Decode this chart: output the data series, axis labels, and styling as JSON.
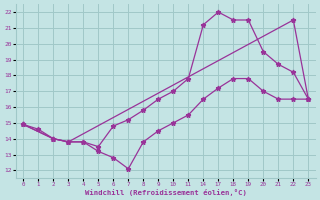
{
  "xlabel": "Windchill (Refroidissement éolien,°C)",
  "bg_color": "#c4e4e4",
  "grid_color": "#a0c8c8",
  "line_color": "#993399",
  "xtick_labels": [
    "0",
    "1",
    "2",
    "3",
    "4",
    "5",
    "6",
    "7",
    "8",
    "9",
    "1011",
    "",
    "14",
    "",
    "1718",
    "19",
    "20",
    "2122",
    "23"
  ],
  "xtick_labels2": [
    "0",
    "1",
    "2",
    "3",
    "4",
    "5",
    "6",
    "7",
    "8",
    "9",
    "10",
    "11",
    "14",
    "17",
    "18",
    "19",
    "20",
    "21",
    "22",
    "23"
  ],
  "n_xcat": 20,
  "line1_xi": [
    0,
    1,
    2,
    3,
    4,
    5,
    6,
    7,
    8,
    9,
    10,
    11,
    12,
    13,
    14,
    15,
    16,
    17,
    18,
    19
  ],
  "line1_y": [
    14.9,
    14.6,
    14.0,
    13.8,
    13.8,
    13.2,
    12.8,
    12.1,
    13.8,
    14.5,
    15.0,
    15.5,
    16.5,
    17.2,
    17.8,
    17.8,
    17.0,
    16.5,
    16.5,
    16.5
  ],
  "line2_xi": [
    0,
    2,
    3,
    4,
    5,
    6,
    7,
    8,
    9,
    10,
    11,
    12,
    13,
    14,
    15,
    16,
    17,
    18,
    19
  ],
  "line2_y": [
    14.9,
    14.0,
    13.8,
    13.8,
    13.5,
    14.8,
    15.2,
    15.8,
    16.5,
    17.0,
    17.8,
    21.2,
    22.0,
    21.5,
    21.5,
    19.5,
    18.7,
    18.2,
    16.5
  ],
  "line3_xi": [
    0,
    2,
    3,
    18,
    19
  ],
  "line3_y": [
    14.9,
    14.0,
    13.8,
    21.5,
    16.5
  ],
  "yticks": [
    12,
    13,
    14,
    15,
    16,
    17,
    18,
    19,
    20,
    21,
    22
  ],
  "ylim": [
    11.5,
    22.5
  ]
}
